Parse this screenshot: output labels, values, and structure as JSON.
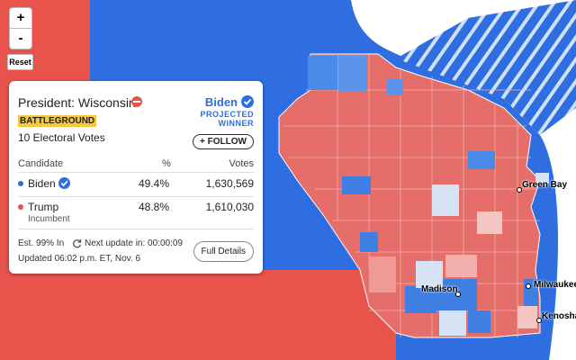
{
  "zoom": {
    "in": "+",
    "out": "-",
    "reset": "Reset"
  },
  "panel": {
    "title": "President: Wisconsin",
    "badge": "BATTLEGROUND",
    "electoral": "10 Electoral Votes",
    "winner": {
      "name": "Biden",
      "status": [
        "PROJECTED",
        "WINNER"
      ]
    },
    "follow": "+ FOLLOW",
    "table": {
      "header": [
        "Candidate",
        "%",
        "Votes"
      ],
      "rows": [
        {
          "name": "Biden",
          "pct": "49.4%",
          "votes": "1,630,569"
        },
        {
          "name": "Trump",
          "note": "Incumbent",
          "pct": "48.8%",
          "votes": "1,610,030"
        }
      ]
    },
    "footer": {
      "est": "Est. 99% In",
      "next": "Next update in: 00:00:09",
      "updated": "Updated 06:02 p.m. ET, Nov. 6",
      "details": "Full Details"
    }
  },
  "map": {
    "cities": [
      "Green Bay",
      "Madison",
      "Milwaukee",
      "Kenosha"
    ]
  }
}
